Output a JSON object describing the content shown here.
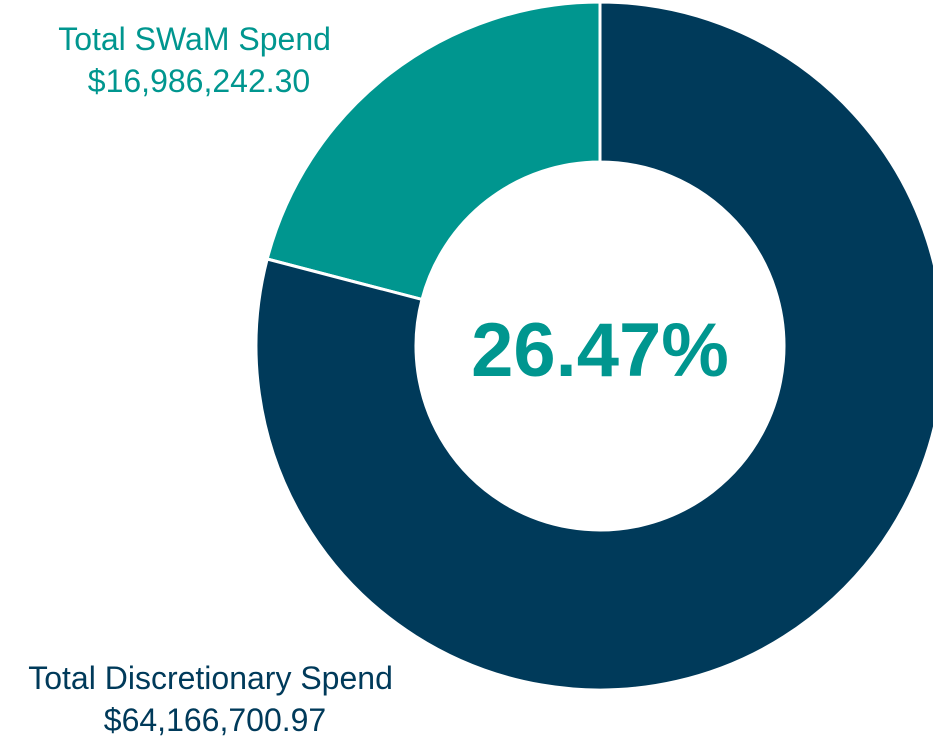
{
  "chart_data": {
    "type": "pie",
    "style": "donut",
    "center_label": "26.47%",
    "slices": [
      {
        "label": "Total SWaM Spend",
        "value_label": "$16,986,242.30",
        "value": 16986242.3,
        "color": "#00968f"
      },
      {
        "label": "Total Discretionary Spend",
        "value_label": "$64,166,700.97",
        "value": 64166700.97,
        "color": "#003a5a"
      }
    ],
    "legend": "none"
  },
  "colors": {
    "swam": "#00968f",
    "discretionary": "#003a5a",
    "center_text": "#00968f",
    "background": "#ffffff"
  }
}
